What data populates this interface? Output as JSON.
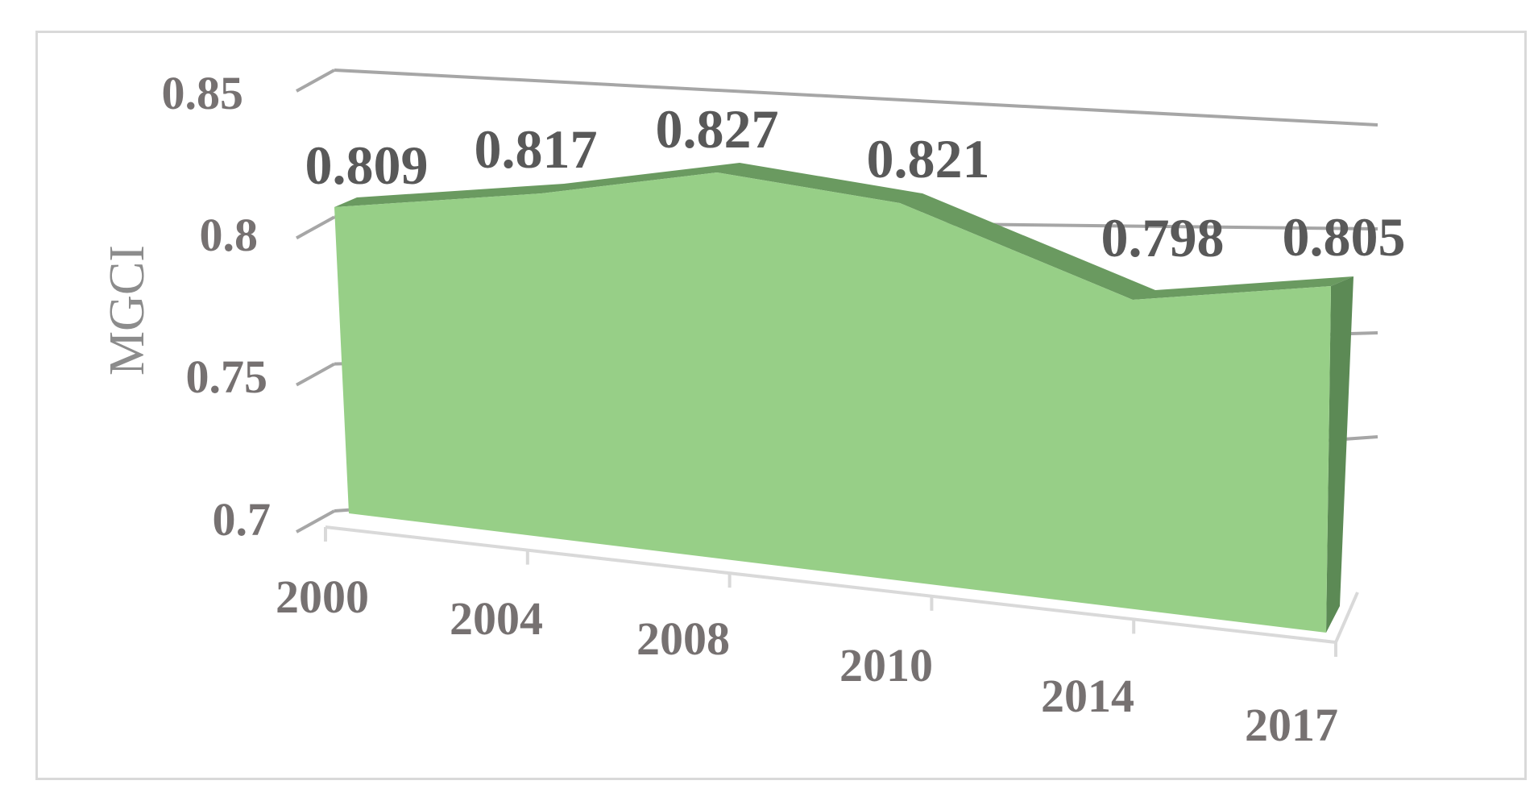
{
  "chart_data": {
    "type": "area",
    "style": "3d-area",
    "categories": [
      "2000",
      "2004",
      "2008",
      "2010",
      "2014",
      "2017"
    ],
    "series": [
      {
        "values": [
          0.809,
          0.817,
          0.827,
          0.821,
          0.798,
          0.805
        ]
      }
    ],
    "data_labels": [
      "0.809",
      "0.817",
      "0.827",
      "0.821",
      "0.798",
      "0.805"
    ],
    "ylabel": "MGCI",
    "xlabel": "",
    "ylim": [
      0.7,
      0.85
    ],
    "y_ticks": [
      "0.7",
      "0.75",
      "0.8",
      "0.85"
    ],
    "grid": true,
    "legend": "none",
    "colors": {
      "area_front": "#97cf87",
      "area_top": "#6a9a60",
      "area_side": "#5c8a55",
      "gridline": "#a6a6a6",
      "floor": "#d9d9d9",
      "tick_text": "#767171",
      "label_text": "#595959"
    }
  }
}
